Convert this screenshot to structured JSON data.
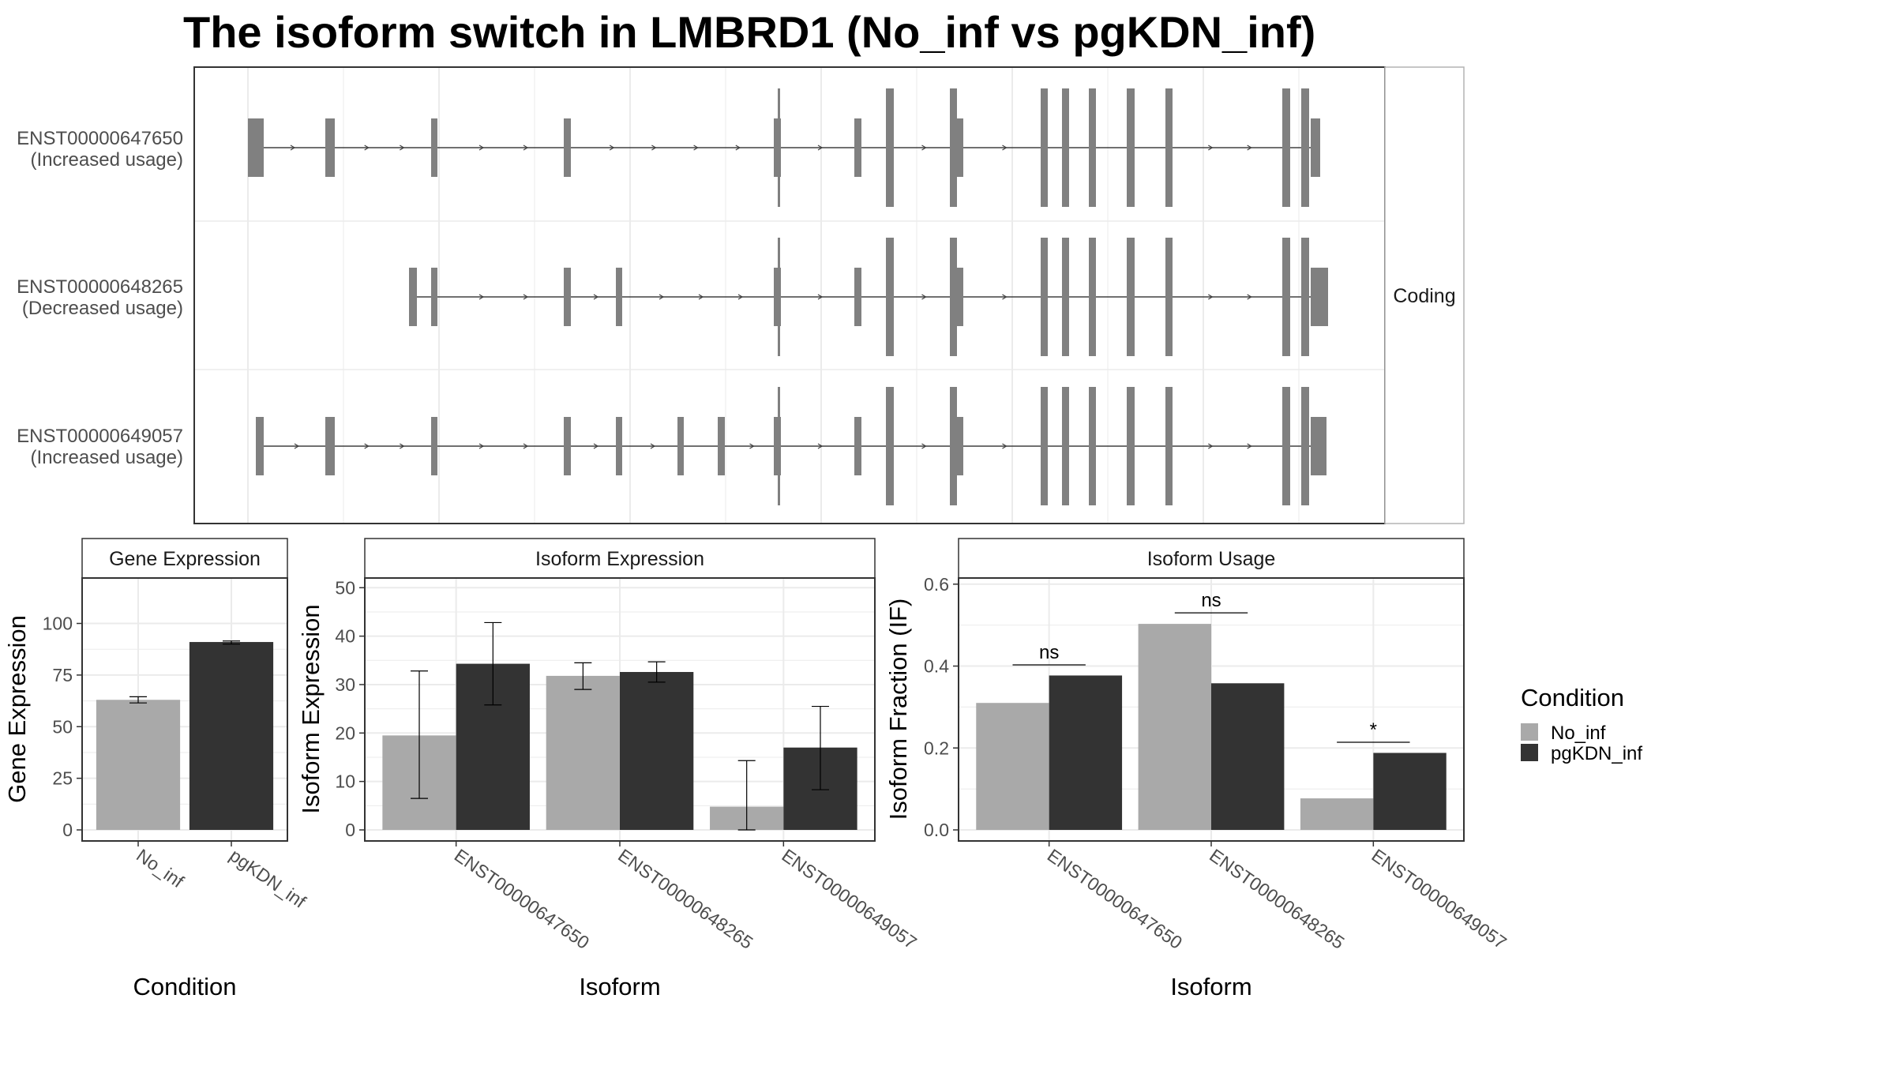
{
  "title": "The isoform switch in LMBRD1 (No_inf vs pgKDN_inf)",
  "colors": {
    "No_inf": "#a9a9a9",
    "pgKDN_inf": "#333333",
    "exon": "#808080",
    "grid": "#ebebeb",
    "border": "#333333"
  },
  "structure": {
    "strip_label": "Coding",
    "transcripts": [
      {
        "id": "ENST00000647650",
        "usage": "(Increased usage)"
      },
      {
        "id": "ENST00000648265",
        "usage": "(Decreased usage)"
      },
      {
        "id": "ENST00000649057",
        "usage": "(Increased usage)"
      }
    ]
  },
  "legend": {
    "title": "Condition",
    "entries": [
      "No_inf",
      "pgKDN_inf"
    ]
  },
  "chart_data": [
    {
      "type": "bar",
      "strip": "Gene Expression",
      "categories": [
        "No_inf",
        "pgKDN_inf"
      ],
      "values": [
        63,
        91
      ],
      "err_low": [
        61.5,
        90
      ],
      "err_high": [
        64.5,
        91.5
      ],
      "xlabel": "Condition",
      "ylabel": "Gene Expression",
      "ylim": [
        0,
        122
      ],
      "yticks": [
        0,
        25,
        50,
        75,
        100
      ]
    },
    {
      "type": "bar",
      "strip": "Isoform Expression",
      "categories": [
        "ENST00000647650",
        "ENST00000648265",
        "ENST00000649057"
      ],
      "series": [
        {
          "name": "No_inf",
          "values": [
            19.5,
            31.8,
            4.8
          ],
          "err_low": [
            6.5,
            29,
            0
          ],
          "err_high": [
            32.8,
            34.5,
            14.3
          ]
        },
        {
          "name": "pgKDN_inf",
          "values": [
            34.3,
            32.6,
            17
          ],
          "err_low": [
            25.8,
            30.5,
            8.3
          ],
          "err_high": [
            42.8,
            34.7,
            25.5
          ]
        }
      ],
      "xlabel": "Isoform",
      "ylabel": "Isoform Expression",
      "ylim": [
        0,
        52
      ],
      "yticks": [
        0,
        10,
        20,
        30,
        40,
        50
      ]
    },
    {
      "type": "bar",
      "strip": "Isoform Usage",
      "categories": [
        "ENST00000647650",
        "ENST00000648265",
        "ENST00000649057"
      ],
      "series": [
        {
          "name": "No_inf",
          "values": [
            0.31,
            0.503,
            0.077
          ]
        },
        {
          "name": "pgKDN_inf",
          "values": [
            0.377,
            0.358,
            0.188
          ]
        }
      ],
      "significance": [
        {
          "label": "ns",
          "y": 0.403
        },
        {
          "label": "ns",
          "y": 0.53
        },
        {
          "label": "*",
          "y": 0.214
        }
      ],
      "xlabel": "Isoform",
      "ylabel": "Isoform Fraction (IF)",
      "ylim": [
        0,
        0.615
      ],
      "yticks": [
        0.0,
        0.2,
        0.4,
        0.6
      ]
    }
  ]
}
